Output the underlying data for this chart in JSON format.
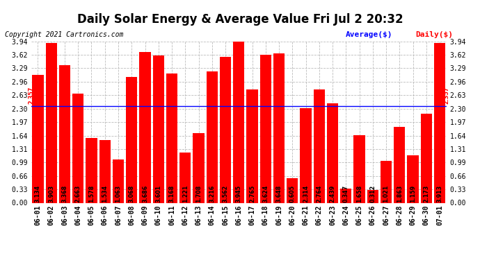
{
  "title": "Daily Solar Energy & Average Value Fri Jul 2 20:32",
  "copyright": "Copyright 2021 Cartronics.com",
  "legend_average": "Average($)",
  "legend_daily": "Daily($)",
  "average_value": 2.357,
  "categories": [
    "06-01",
    "06-02",
    "06-03",
    "06-04",
    "06-05",
    "06-06",
    "06-07",
    "06-08",
    "06-09",
    "06-10",
    "06-11",
    "06-12",
    "06-13",
    "06-14",
    "06-15",
    "06-16",
    "06-17",
    "06-18",
    "06-19",
    "06-20",
    "06-21",
    "06-22",
    "06-23",
    "06-24",
    "06-25",
    "06-26",
    "06-27",
    "06-28",
    "06-29",
    "06-30",
    "07-01"
  ],
  "values": [
    3.134,
    3.903,
    3.368,
    2.663,
    1.578,
    1.534,
    1.063,
    3.068,
    3.686,
    3.601,
    3.168,
    1.221,
    1.708,
    3.216,
    3.562,
    3.945,
    2.765,
    3.624,
    3.648,
    0.605,
    2.314,
    2.764,
    2.439,
    0.347,
    1.658,
    0.312,
    1.021,
    1.863,
    1.159,
    2.173,
    3.913
  ],
  "bar_color": "#ff0000",
  "average_line_color": "#0000ff",
  "average_label_color": "#ff0000",
  "background_color": "#ffffff",
  "grid_color": "#bbbbbb",
  "ylim": [
    0,
    3.94
  ],
  "yticks": [
    0.0,
    0.33,
    0.66,
    0.99,
    1.31,
    1.64,
    1.97,
    2.3,
    2.63,
    2.96,
    3.29,
    3.62,
    3.94
  ],
  "title_fontsize": 12,
  "bar_label_fontsize": 5.8,
  "tick_fontsize": 7,
  "copyright_fontsize": 7,
  "legend_fontsize": 8
}
